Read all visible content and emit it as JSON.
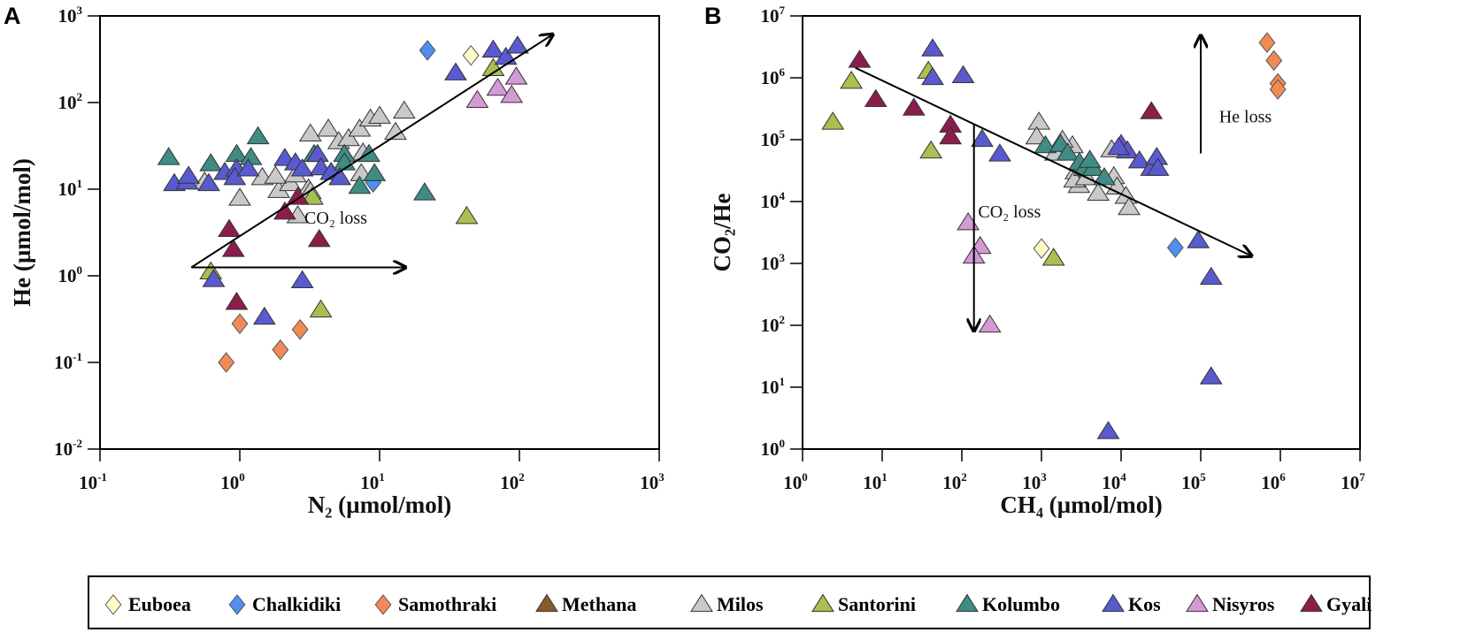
{
  "legend": [
    {
      "name": "Euboea",
      "color": "#fffcc8",
      "marker": "diamond"
    },
    {
      "name": "Chalkidiki",
      "color": "#4f8ff0",
      "marker": "diamond"
    },
    {
      "name": "Samothraki",
      "color": "#f28a55",
      "marker": "diamond"
    },
    {
      "name": "Methana",
      "color": "#8b5a2b",
      "marker": "triangle"
    },
    {
      "name": "Milos",
      "color": "#c9c9c9",
      "marker": "triangle"
    },
    {
      "name": "Santorini",
      "color": "#a9c04f",
      "marker": "triangle"
    },
    {
      "name": "Kolumbo",
      "color": "#3f8c84",
      "marker": "triangle"
    },
    {
      "name": "Kos",
      "color": "#5a5ad0",
      "marker": "triangle"
    },
    {
      "name": "Nisyros",
      "color": "#d49ad6",
      "marker": "triangle"
    },
    {
      "name": "Gyali",
      "color": "#8b1d4d",
      "marker": "triangle"
    }
  ],
  "chart_data": [
    {
      "panel": "A",
      "type": "scatter",
      "xlabel": "N₂ (µmol/mol)",
      "ylabel": "He (µmol/mol)",
      "xscale": "log",
      "yscale": "log",
      "xlim": [
        0.1,
        1000
      ],
      "ylim": [
        0.01,
        1000
      ],
      "x_ticks": [
        {
          "base": "10",
          "exp": "-1"
        },
        {
          "base": "10",
          "exp": "0"
        },
        {
          "base": "10",
          "exp": "1"
        },
        {
          "base": "10",
          "exp": "2"
        },
        {
          "base": "10",
          "exp": "3"
        }
      ],
      "y_ticks": [
        {
          "base": "10",
          "exp": "-2"
        },
        {
          "base": "10",
          "exp": "-1"
        },
        {
          "base": "10",
          "exp": "0"
        },
        {
          "base": "10",
          "exp": "1"
        },
        {
          "base": "10",
          "exp": "2"
        },
        {
          "base": "10",
          "exp": "3"
        }
      ],
      "series": [
        {
          "name": "Euboea",
          "points": [
            [
              45,
              350
            ]
          ]
        },
        {
          "name": "Chalkidiki",
          "points": [
            [
              22,
              400
            ],
            [
              9,
              12
            ]
          ]
        },
        {
          "name": "Samothraki",
          "points": [
            [
              1.0,
              0.28
            ],
            [
              0.8,
              0.1
            ],
            [
              1.95,
              0.14
            ],
            [
              2.7,
              0.24
            ]
          ]
        },
        {
          "name": "Milos",
          "points": [
            [
              1.0,
              7.8
            ],
            [
              1.9,
              9.6
            ],
            [
              2.3,
              11.5
            ],
            [
              2.6,
              4.9
            ],
            [
              3.1,
              10
            ],
            [
              1.45,
              13.5
            ],
            [
              1.8,
              14
            ],
            [
              2.5,
              14.5
            ],
            [
              3.2,
              43
            ],
            [
              4.3,
              49
            ],
            [
              5.1,
              35
            ],
            [
              6.0,
              38
            ],
            [
              7.2,
              49
            ],
            [
              8.6,
              64
            ],
            [
              10,
              69
            ],
            [
              13,
              45
            ],
            [
              15,
              79
            ],
            [
              7.4,
              15
            ],
            [
              7.6,
              26
            ],
            [
              3.2,
              9.3
            ],
            [
              0.56,
              12
            ]
          ]
        },
        {
          "name": "Santorini",
          "points": [
            [
              65,
              245
            ],
            [
              42,
              4.8
            ],
            [
              3.3,
              8
            ],
            [
              0.62,
              1.1
            ],
            [
              3.8,
              0.4
            ]
          ]
        },
        {
          "name": "Kolumbo",
          "points": [
            [
              0.31,
              23
            ],
            [
              0.62,
              19.5
            ],
            [
              0.95,
              25
            ],
            [
              1.2,
              23
            ],
            [
              1.35,
              40
            ],
            [
              5.6,
              25
            ],
            [
              8.4,
              25
            ],
            [
              7.2,
              10.7
            ],
            [
              9.2,
              15
            ],
            [
              21,
              9
            ],
            [
              5.6,
              20
            ],
            [
              3.4,
              25
            ]
          ]
        },
        {
          "name": "Kos",
          "points": [
            [
              65,
              400
            ],
            [
              80,
              330
            ],
            [
              97,
              445
            ],
            [
              35,
              218
            ],
            [
              0.34,
              11.5
            ],
            [
              0.42,
              12
            ],
            [
              0.6,
              11.5
            ],
            [
              0.43,
              14
            ],
            [
              0.78,
              15.5
            ],
            [
              0.95,
              17
            ],
            [
              0.92,
              13.5
            ],
            [
              1.15,
              17
            ],
            [
              2.1,
              22.5
            ],
            [
              2.5,
              20
            ],
            [
              2.8,
              17
            ],
            [
              3.6,
              25
            ],
            [
              3.8,
              17.5
            ],
            [
              4.5,
              15.5
            ],
            [
              5.2,
              13.5
            ],
            [
              0.65,
              0.9
            ],
            [
              2.8,
              0.87
            ],
            [
              1.5,
              0.33
            ]
          ]
        },
        {
          "name": "Nisyros",
          "points": [
            [
              50,
              105
            ],
            [
              70,
              145
            ],
            [
              88,
              120
            ],
            [
              95,
              195
            ]
          ]
        },
        {
          "name": "Gyali",
          "points": [
            [
              2.6,
              8
            ],
            [
              2.1,
              5.4
            ],
            [
              0.84,
              3.4
            ],
            [
              0.9,
              2.0
            ],
            [
              3.7,
              2.6
            ],
            [
              0.95,
              0.49
            ]
          ]
        }
      ],
      "arrows": [
        {
          "from": [
            0.45,
            1.25
          ],
          "to": [
            170,
            600
          ]
        },
        {
          "from": [
            0.45,
            1.25
          ],
          "to": [
            15,
            1.25
          ]
        }
      ],
      "annotations": [
        {
          "text": "CO₂ loss",
          "at": [
            2.9,
            4.0
          ]
        }
      ]
    },
    {
      "panel": "B",
      "type": "scatter",
      "xlabel": "CH₄ (µmol/mol)",
      "ylabel": "CO₂/He",
      "xscale": "log",
      "yscale": "log",
      "xlim": [
        1,
        10000000
      ],
      "ylim": [
        1,
        10000000
      ],
      "x_ticks": [
        {
          "base": "10",
          "exp": "0"
        },
        {
          "base": "10",
          "exp": "1"
        },
        {
          "base": "10",
          "exp": "2"
        },
        {
          "base": "10",
          "exp": "3"
        },
        {
          "base": "10",
          "exp": "4"
        },
        {
          "base": "10",
          "exp": "5"
        },
        {
          "base": "10",
          "exp": "6"
        },
        {
          "base": "10",
          "exp": "7"
        }
      ],
      "y_ticks": [
        {
          "base": "10",
          "exp": "0"
        },
        {
          "base": "10",
          "exp": "1"
        },
        {
          "base": "10",
          "exp": "2"
        },
        {
          "base": "10",
          "exp": "3"
        },
        {
          "base": "10",
          "exp": "4"
        },
        {
          "base": "10",
          "exp": "5"
        },
        {
          "base": "10",
          "exp": "6"
        },
        {
          "base": "10",
          "exp": "7"
        }
      ],
      "series": [
        {
          "name": "Euboea",
          "points": [
            [
              1000,
              1740
            ]
          ]
        },
        {
          "name": "Chalkidiki",
          "points": [
            [
              48000,
              1800
            ]
          ]
        },
        {
          "name": "Samothraki",
          "points": [
            [
              680000,
              3700000
            ],
            [
              830000,
              1900000
            ],
            [
              930000,
              810000
            ],
            [
              930000,
              650000
            ]
          ]
        },
        {
          "name": "Milos",
          "points": [
            [
              930,
              190000
            ],
            [
              870,
              110000
            ],
            [
              1500,
              60000
            ],
            [
              2450,
              79000
            ],
            [
              1830,
              97000
            ],
            [
              2700,
              30000
            ],
            [
              2950,
              18000
            ],
            [
              2600,
              22000
            ],
            [
              3650,
              24000
            ],
            [
              5150,
              13500
            ],
            [
              8100,
              25000
            ],
            [
              8900,
              17000
            ],
            [
              11500,
              12000
            ],
            [
              12600,
              7900
            ],
            [
              7600,
              68000
            ]
          ]
        },
        {
          "name": "Santorini",
          "points": [
            [
              4.1,
              870000
            ],
            [
              2.4,
              190000
            ],
            [
              38,
              1260000
            ],
            [
              41,
              65000
            ],
            [
              1420,
              1200
            ]
          ]
        },
        {
          "name": "Kolumbo",
          "points": [
            [
              1120,
              79000
            ],
            [
              1740,
              83000
            ],
            [
              2130,
              60000
            ],
            [
              3000,
              42000
            ],
            [
              3470,
              34000
            ],
            [
              4460,
              34000
            ],
            [
              6150,
              24000
            ],
            [
              4050,
              46000
            ]
          ]
        },
        {
          "name": "Kos",
          "points": [
            [
              43,
              2900000
            ],
            [
              43,
              1000000
            ],
            [
              104,
              1070000
            ],
            [
              180,
              100000
            ],
            [
              300,
              58000
            ],
            [
              93000,
              2300
            ],
            [
              135000,
              590
            ],
            [
              135000,
              14.5
            ],
            [
              6900,
              1.9
            ],
            [
              10000,
              83000
            ],
            [
              12000,
              65000
            ],
            [
              17000,
              45000
            ],
            [
              24000,
              34000
            ],
            [
              28000,
              51000
            ],
            [
              29000,
              34000
            ],
            [
              9300,
              74000
            ]
          ]
        },
        {
          "name": "Nisyros",
          "points": [
            [
              120,
              4500
            ],
            [
              170,
              1860
            ],
            [
              142,
              1300
            ],
            [
              225,
              100
            ]
          ]
        },
        {
          "name": "Gyali",
          "points": [
            [
              5.2,
              1900000
            ],
            [
              8.3,
              440000
            ],
            [
              25,
              320000
            ],
            [
              72,
              170000
            ],
            [
              72,
              110000
            ],
            [
              24000,
              280000
            ]
          ]
        }
      ],
      "arrows": [
        {
          "from": [
            4.6,
            1450000
          ],
          "to": [
            420000,
            1350
          ]
        },
        {
          "from": [
            142,
            175000
          ],
          "to": [
            142,
            85
          ]
        },
        {
          "from": [
            100000,
            60000
          ],
          "to": [
            100000,
            4600000
          ]
        }
      ],
      "annotations": [
        {
          "text": "CO₂ loss",
          "at": [
            160,
            5500
          ]
        },
        {
          "text": "He loss",
          "at": [
            170000,
            190000
          ]
        }
      ]
    }
  ]
}
